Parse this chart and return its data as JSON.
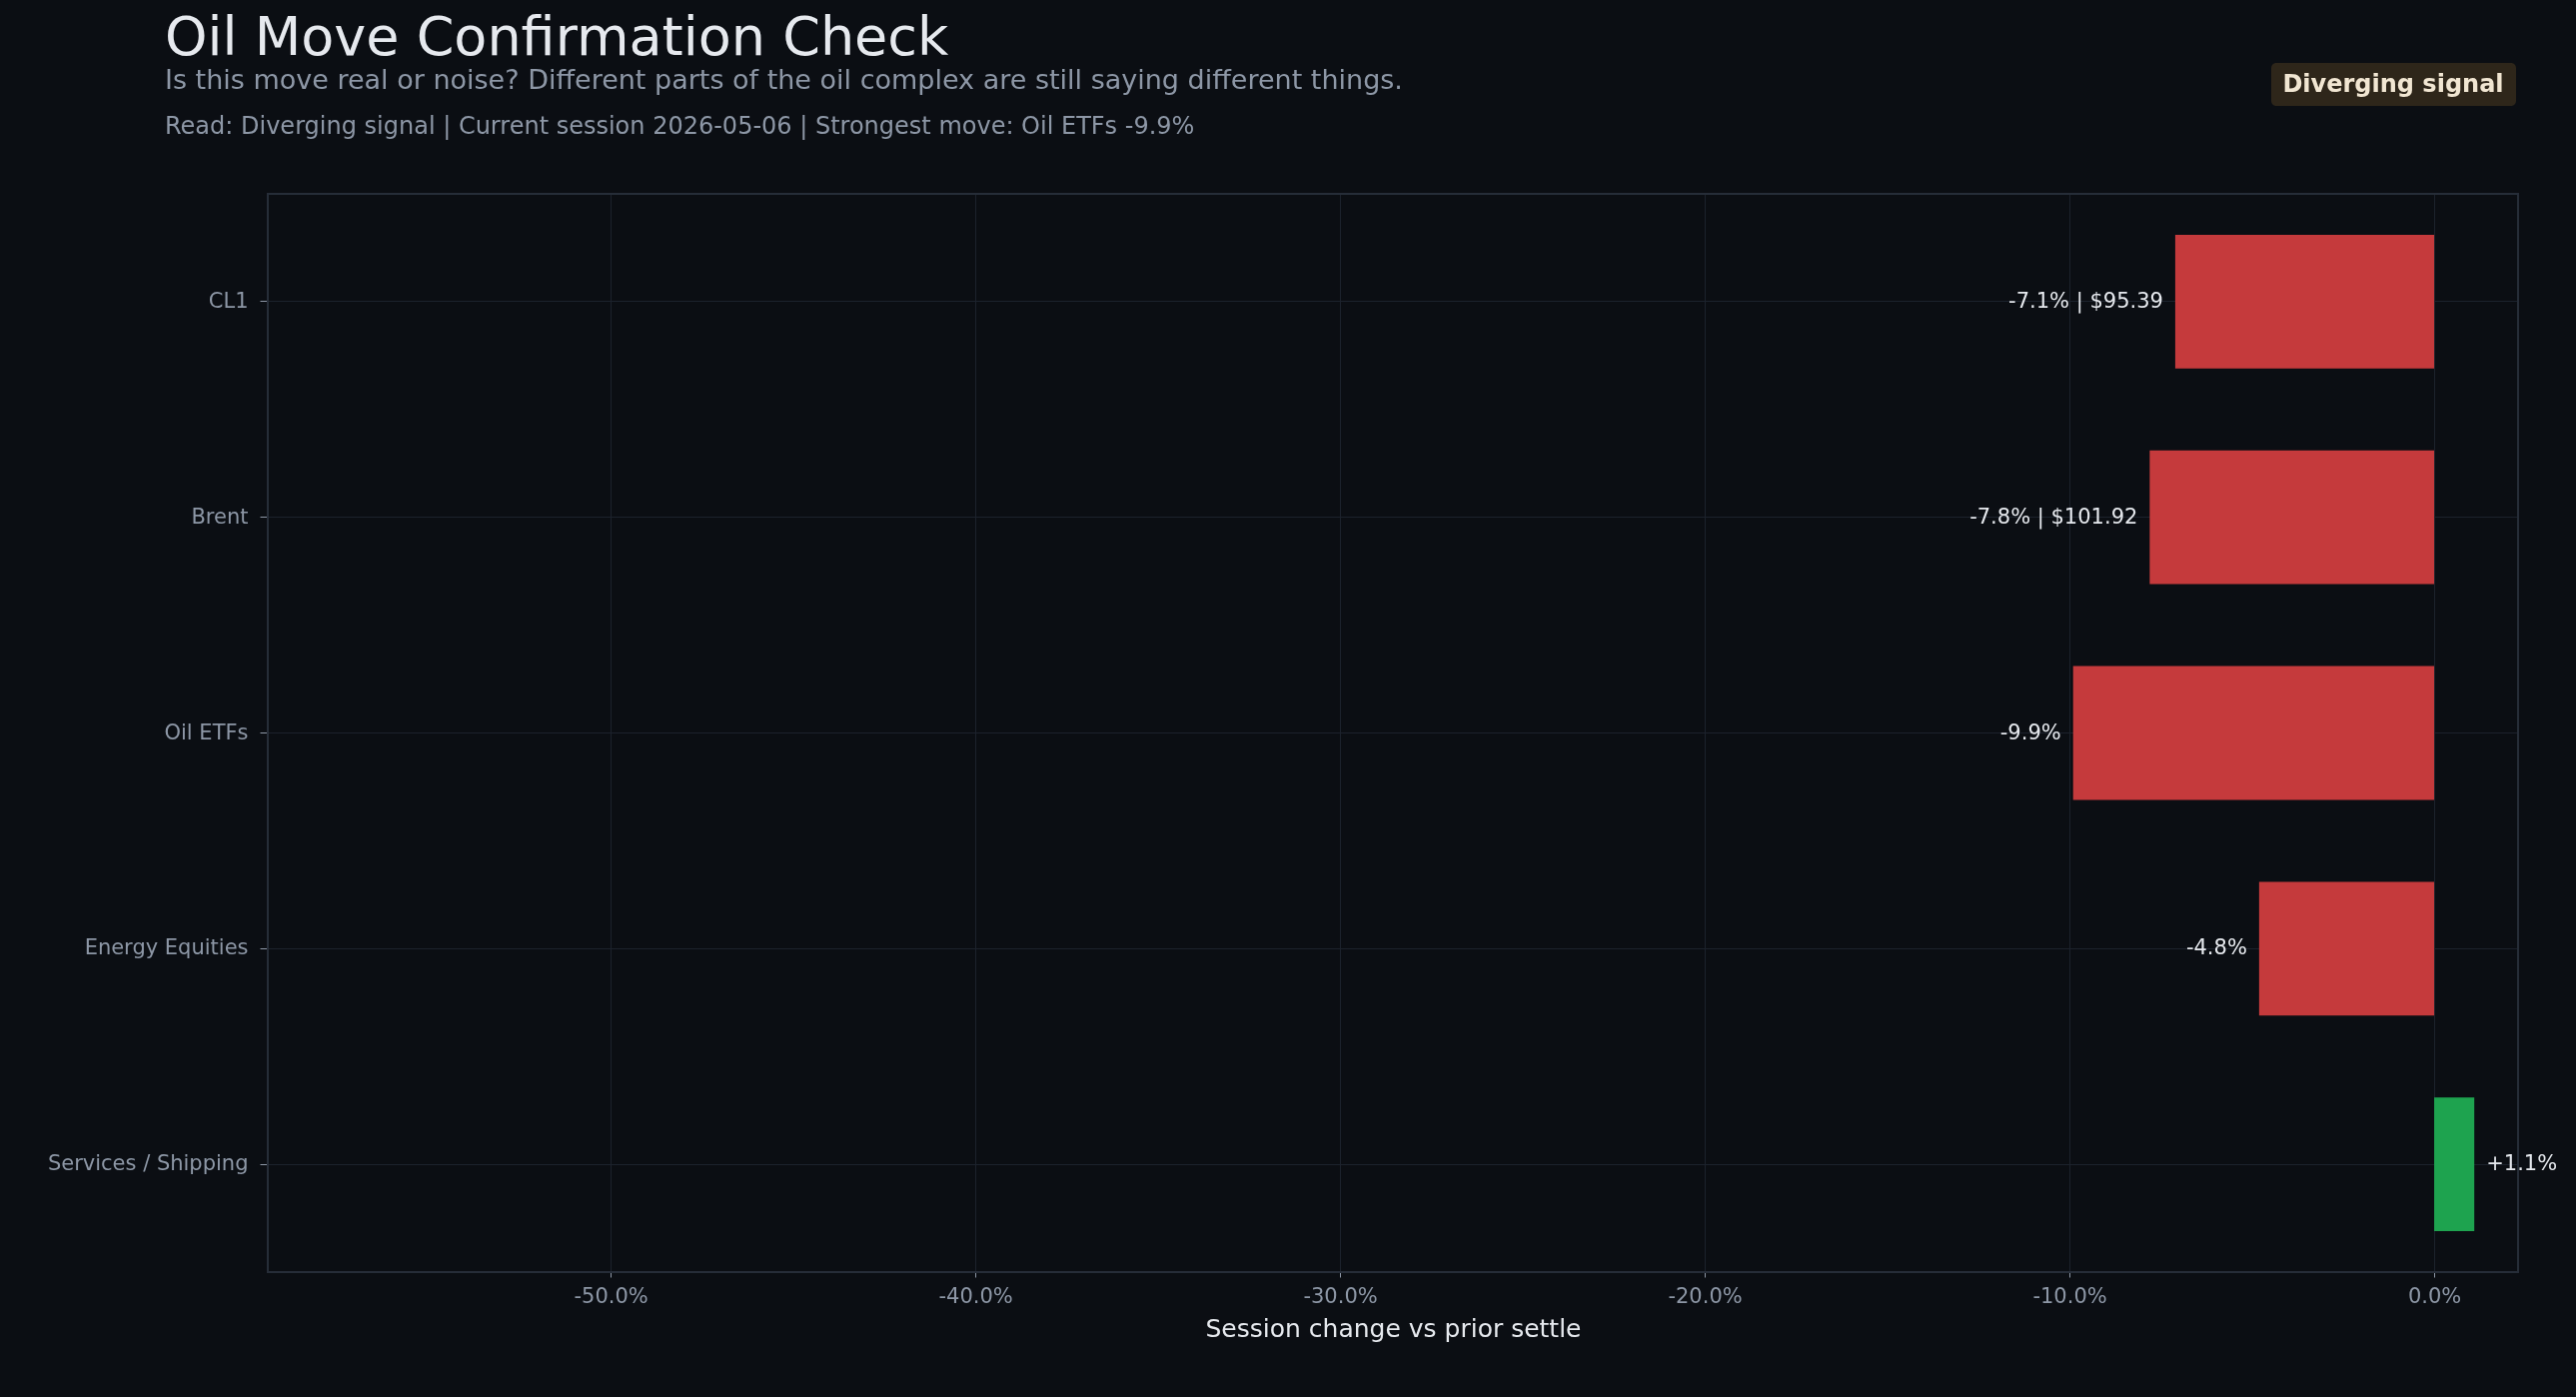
{
  "chart_data": {
    "type": "bar",
    "orientation": "horizontal",
    "title": "Oil Move Confirmation Check",
    "subtitle": "Is this move real or noise? Different parts of the oil complex are still saying different things.",
    "annotations": [
      "Read: Diverging signal  |  Current session 2026-05-06  |  Strongest move: Oil ETFs -9.9%",
      "Diverging signal"
    ],
    "xlabel": "Session change vs prior settle",
    "categories": [
      "CL1",
      "Brent",
      "Oil ETFs",
      "Energy Equities",
      "Services / Shipping"
    ],
    "values": [
      -7.1,
      -7.8,
      -9.9,
      -4.8,
      1.1
    ],
    "colors": [
      "#c53a3c",
      "#c53a3c",
      "#c53a3c",
      "#c53a3c",
      "#1ea34f"
    ],
    "value_labels": [
      "-7.1% | $95.39",
      "-7.8% | $101.92",
      "-9.9%",
      "-4.8%",
      "+1.1%"
    ],
    "xlim": [
      -59.4,
      2.3
    ],
    "xticks": [
      {
        "value": -50,
        "label": "-50.0%"
      },
      {
        "value": -40,
        "label": "-40.0%"
      },
      {
        "value": -30,
        "label": "-30.0%"
      },
      {
        "value": -20,
        "label": "-20.0%"
      },
      {
        "value": -10,
        "label": "-10.0%"
      },
      {
        "value": 0,
        "label": "0.0%"
      }
    ],
    "grid": true
  }
}
